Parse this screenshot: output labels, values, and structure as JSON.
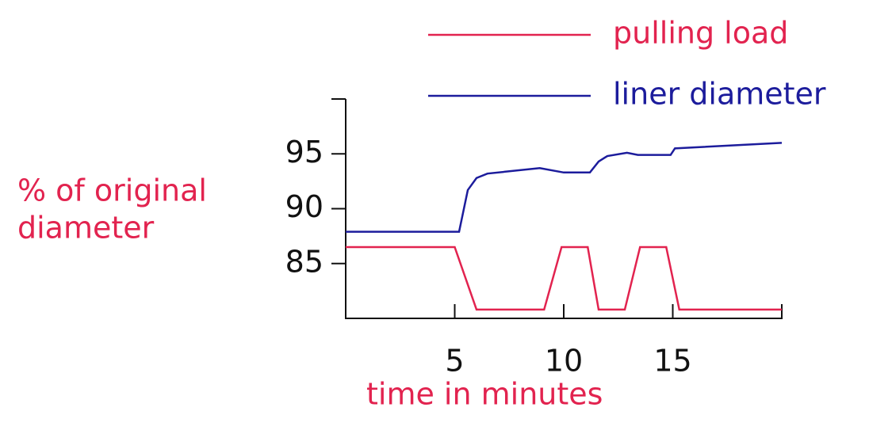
{
  "chart_data": {
    "type": "line",
    "xlabel": "time in minutes",
    "ylabel": [
      "% of original",
      "diameter"
    ],
    "xlim": [
      0,
      20
    ],
    "xticks": [
      5,
      10,
      15
    ],
    "ylim": [
      80,
      100
    ],
    "yticks": [
      85,
      90,
      95
    ],
    "legend": "top-right",
    "series": [
      {
        "name": "pulling load",
        "color": "#e2234f",
        "x": [
          0,
          5,
          6,
          9.1,
          9.9,
          11.1,
          11.6,
          12.8,
          13.5,
          14.7,
          15.3,
          20
        ],
        "values": [
          86.5,
          86.5,
          80.8,
          80.8,
          86.5,
          86.5,
          80.8,
          80.8,
          86.5,
          86.5,
          80.8,
          80.8
        ]
      },
      {
        "name": "liner diameter",
        "color": "#1c1c9c",
        "x": [
          0,
          5.2,
          5.6,
          6.0,
          6.5,
          8.9,
          10.0,
          11.2,
          11.6,
          12.0,
          12.9,
          13.4,
          14.9,
          15.1,
          20
        ],
        "values": [
          87.9,
          87.9,
          91.7,
          92.8,
          93.2,
          93.7,
          93.3,
          93.3,
          94.3,
          94.8,
          95.1,
          94.9,
          94.9,
          95.5,
          96.0
        ]
      }
    ]
  }
}
